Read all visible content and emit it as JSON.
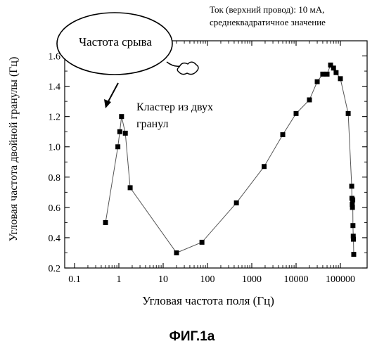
{
  "note_line1": "Ток (верхний провод): 10 мА,",
  "note_line2": "среднеквадратичное значение",
  "callout_label": "Частота срыва",
  "cluster_line1": "Кластер из двух",
  "cluster_line2": "гранул",
  "figure_caption": "ФИГ.1а",
  "chart_data": {
    "type": "line",
    "xscale": "log",
    "xlabel": "Угловая частота поля (Гц)",
    "ylabel": "Угловая частота двойной гранулы (Гц)",
    "xlim": [
      0.1,
      200000
    ],
    "ylim": [
      0.2,
      1.7
    ],
    "xticks": [
      0.1,
      1,
      10,
      100,
      1000,
      10000,
      100000
    ],
    "xtick_labels": [
      "0.1",
      "1",
      "10",
      "100",
      "1000",
      "10000",
      "100000"
    ],
    "yticks": [
      0.2,
      0.4,
      0.6,
      0.8,
      1.0,
      1.2,
      1.4,
      1.6
    ],
    "ytick_labels": [
      "0.2",
      "0.4",
      "0.6",
      "0.8",
      "1.0",
      "1.2",
      "1.4",
      "1.6"
    ],
    "grid": false,
    "marker": "square",
    "series": [
      {
        "x": [
          0.5,
          0.95,
          1.05,
          1.15,
          1.4,
          1.8,
          20,
          75,
          450,
          1900,
          5000,
          10000,
          20000,
          30000,
          40000,
          50000,
          60000,
          70000,
          80000,
          100000,
          150000,
          180000,
          182000,
          185000,
          187000,
          190000,
          192000,
          195000,
          197000,
          200000
        ],
        "y": [
          0.5,
          1.0,
          1.1,
          1.2,
          1.09,
          0.73,
          0.3,
          0.37,
          0.63,
          0.87,
          1.08,
          1.22,
          1.31,
          1.43,
          1.48,
          1.48,
          1.54,
          1.52,
          1.49,
          1.45,
          1.22,
          0.74,
          0.66,
          0.62,
          0.6,
          0.65,
          0.48,
          0.41,
          0.39,
          0.29
        ]
      }
    ]
  }
}
